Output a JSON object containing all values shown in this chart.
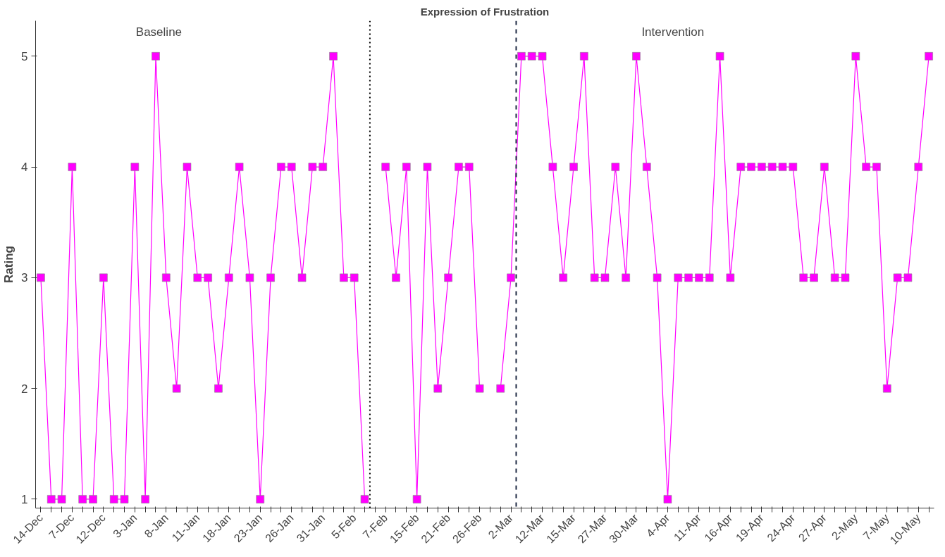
{
  "chart_data": {
    "type": "line",
    "title": "Expression of Frustration",
    "ylabel": "Rating",
    "categories": [
      "14-Dec",
      null,
      null,
      "7-Dec",
      null,
      null,
      "12-Dec",
      null,
      null,
      "3-Jan",
      null,
      null,
      "8-Jan",
      null,
      null,
      "11-Jan",
      null,
      null,
      "18-Jan",
      null,
      null,
      "23-Jan",
      null,
      null,
      "26-Jan",
      null,
      null,
      "31-Jan",
      null,
      null,
      "5-Feb",
      null,
      null,
      "7-Feb",
      null,
      null,
      "15-Feb",
      null,
      null,
      "21-Feb",
      null,
      null,
      "26-Feb",
      null,
      null,
      "2-Mar",
      null,
      null,
      "12-Mar",
      null,
      null,
      "15-Mar",
      null,
      null,
      "27-Mar",
      null,
      null,
      "30-Mar",
      null,
      null,
      "4-Apr",
      null,
      null,
      "11-Apr",
      null,
      null,
      "16-Apr",
      null,
      null,
      "19-Apr",
      null,
      null,
      "24-Apr",
      null,
      null,
      "27-Apr",
      null,
      null,
      "2-May",
      null,
      null,
      "7-May",
      null,
      null,
      "10-May",
      null
    ],
    "series": [
      {
        "color": "#ff00ff",
        "values": [
          3,
          1,
          1,
          4,
          1,
          1,
          3,
          1,
          1,
          4,
          1,
          5,
          3,
          2,
          4,
          3,
          3,
          2,
          3,
          4,
          3,
          1,
          3,
          4,
          4,
          3,
          4,
          4,
          5,
          3,
          3,
          1,
          null,
          4,
          3,
          4,
          1,
          4,
          2,
          3,
          4,
          4,
          2,
          null,
          2,
          3,
          5,
          5,
          5,
          4,
          3,
          4,
          5,
          3,
          3,
          4,
          3,
          5,
          4,
          3,
          1,
          3,
          3,
          3,
          3,
          5,
          3,
          4,
          4,
          4,
          4,
          4,
          4,
          3,
          3,
          4,
          3,
          3,
          5,
          4,
          4,
          2,
          3,
          3,
          4,
          5
        ]
      }
    ],
    "ylim": [
      0.92,
      5.32
    ],
    "yticks": [
      1,
      2,
      3,
      4,
      5
    ],
    "grid": false,
    "marker": "square",
    "line_style": "solid",
    "annotations": [
      "Baseline",
      "Intervention"
    ]
  }
}
